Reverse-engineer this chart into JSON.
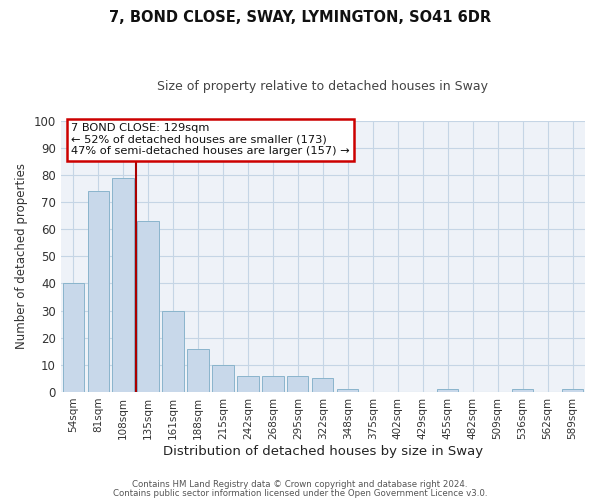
{
  "title": "7, BOND CLOSE, SWAY, LYMINGTON, SO41 6DR",
  "subtitle": "Size of property relative to detached houses in Sway",
  "xlabel": "Distribution of detached houses by size in Sway",
  "ylabel": "Number of detached properties",
  "bar_color": "#c8d8ea",
  "bar_edge_color": "#8ab4cc",
  "grid_color": "#c5d5e5",
  "background_color": "#eef2f8",
  "categories": [
    "54sqm",
    "81sqm",
    "108sqm",
    "135sqm",
    "161sqm",
    "188sqm",
    "215sqm",
    "242sqm",
    "268sqm",
    "295sqm",
    "322sqm",
    "348sqm",
    "375sqm",
    "402sqm",
    "429sqm",
    "455sqm",
    "482sqm",
    "509sqm",
    "536sqm",
    "562sqm",
    "589sqm"
  ],
  "values": [
    40,
    74,
    79,
    63,
    30,
    16,
    10,
    6,
    6,
    6,
    5,
    1,
    0,
    0,
    0,
    1,
    0,
    0,
    1,
    0,
    1
  ],
  "marker_color": "#aa0000",
  "ylim": [
    0,
    100
  ],
  "annotation_title": "7 BOND CLOSE: 129sqm",
  "annotation_line1": "← 52% of detached houses are smaller (173)",
  "annotation_line2": "47% of semi-detached houses are larger (157) →",
  "annotation_box_color": "#cc0000",
  "footnote1": "Contains HM Land Registry data © Crown copyright and database right 2024.",
  "footnote2": "Contains public sector information licensed under the Open Government Licence v3.0."
}
